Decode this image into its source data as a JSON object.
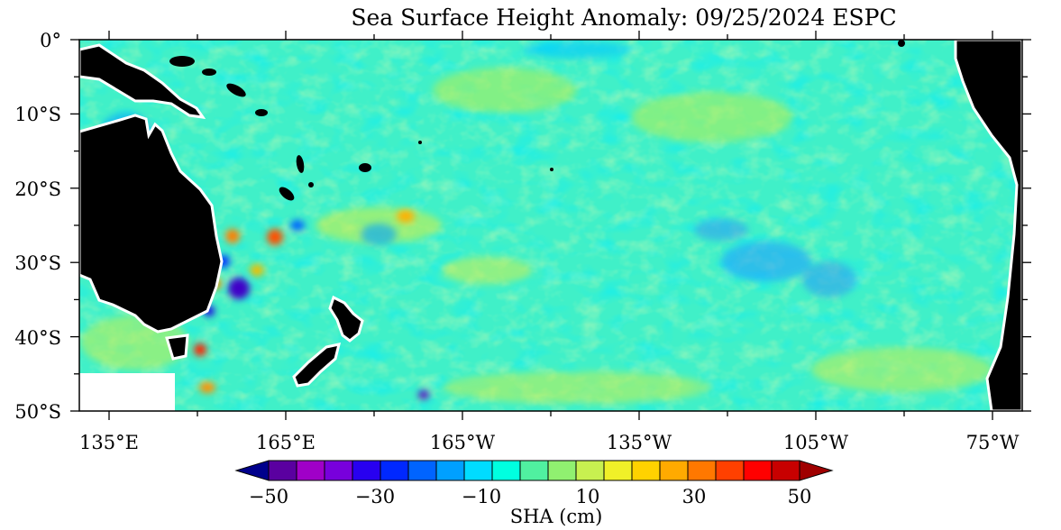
{
  "title": "Sea Surface Height Anomaly: 09/25/2024 ESPC",
  "map": {
    "lat_labels": [
      "0°",
      "10°S",
      "20°S",
      "30°S",
      "40°S",
      "50°S"
    ],
    "lon_labels": [
      "135°E",
      "165°E",
      "165°W",
      "135°W",
      "105°W",
      "75°W"
    ],
    "land_color": "#000000",
    "missing_color": "#ffffff"
  },
  "colorbar": {
    "tick_labels": [
      "−50",
      "−30",
      "−10",
      "10",
      "30",
      "50"
    ],
    "label": "SHA (cm)",
    "colors": [
      "#00008c",
      "#5a00a0",
      "#a000c8",
      "#7800dc",
      "#2800f0",
      "#0028ff",
      "#0064ff",
      "#00a0ff",
      "#00dcff",
      "#00ffe0",
      "#50f0a0",
      "#90f070",
      "#c8f050",
      "#f0f028",
      "#ffd200",
      "#ffaa00",
      "#ff7800",
      "#ff4000",
      "#ff0000",
      "#c80000",
      "#a00000"
    ]
  }
}
